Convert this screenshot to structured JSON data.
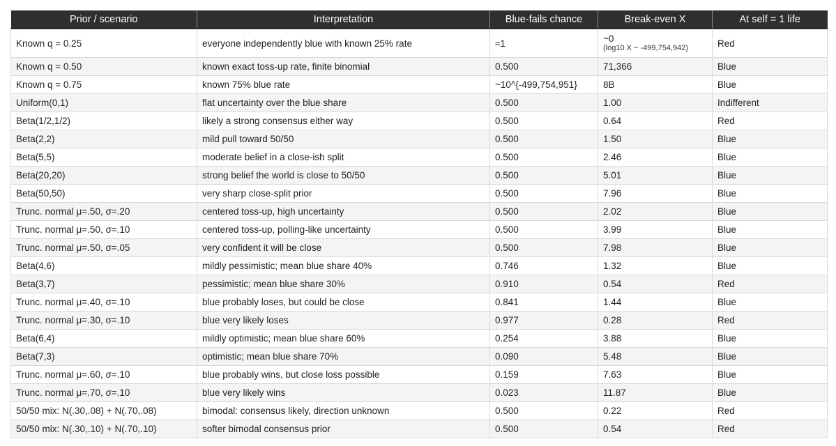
{
  "table": {
    "headers": [
      "Prior / scenario",
      "Interpretation",
      "Blue-fails chance",
      "Break-even X",
      "At self = 1 life"
    ],
    "rows": [
      {
        "prior": "Known q = 0.25",
        "interpretation": "everyone independently blue with known 25% rate",
        "blue_fails": "≈1",
        "break_even": "~0",
        "break_even_note": "(log10 X ~ -499,754,942)",
        "at_self": "Red"
      },
      {
        "prior": "Known q = 0.50",
        "interpretation": "known exact toss-up rate, finite binomial",
        "blue_fails": "0.500",
        "break_even": "71,366",
        "at_self": "Blue"
      },
      {
        "prior": "Known q = 0.75",
        "interpretation": "known 75% blue rate",
        "blue_fails": "~10^{-499,754,951}",
        "break_even": "8B",
        "at_self": "Blue"
      },
      {
        "prior": "Uniform(0,1)",
        "interpretation": "flat uncertainty over the blue share",
        "blue_fails": "0.500",
        "break_even": "1.00",
        "at_self": "Indifferent"
      },
      {
        "prior": "Beta(1/2,1/2)",
        "interpretation": "likely a strong consensus either way",
        "blue_fails": "0.500",
        "break_even": "0.64",
        "at_self": "Red"
      },
      {
        "prior": "Beta(2,2)",
        "interpretation": "mild pull toward 50/50",
        "blue_fails": "0.500",
        "break_even": "1.50",
        "at_self": "Blue"
      },
      {
        "prior": "Beta(5,5)",
        "interpretation": "moderate belief in a close-ish split",
        "blue_fails": "0.500",
        "break_even": "2.46",
        "at_self": "Blue"
      },
      {
        "prior": "Beta(20,20)",
        "interpretation": "strong belief the world is close to 50/50",
        "blue_fails": "0.500",
        "break_even": "5.01",
        "at_self": "Blue"
      },
      {
        "prior": "Beta(50,50)",
        "interpretation": "very sharp close-split prior",
        "blue_fails": "0.500",
        "break_even": "7.96",
        "at_self": "Blue"
      },
      {
        "prior": "Trunc. normal μ=.50, σ=.20",
        "interpretation": "centered toss-up, high uncertainty",
        "blue_fails": "0.500",
        "break_even": "2.02",
        "at_self": "Blue"
      },
      {
        "prior": "Trunc. normal μ=.50, σ=.10",
        "interpretation": "centered toss-up, polling-like uncertainty",
        "blue_fails": "0.500",
        "break_even": "3.99",
        "at_self": "Blue"
      },
      {
        "prior": "Trunc. normal μ=.50, σ=.05",
        "interpretation": "very confident it will be close",
        "blue_fails": "0.500",
        "break_even": "7.98",
        "at_self": "Blue"
      },
      {
        "prior": "Beta(4,6)",
        "interpretation": "mildly pessimistic; mean blue share 40%",
        "blue_fails": "0.746",
        "break_even": "1.32",
        "at_self": "Blue"
      },
      {
        "prior": "Beta(3,7)",
        "interpretation": "pessimistic; mean blue share 30%",
        "blue_fails": "0.910",
        "break_even": "0.54",
        "at_self": "Red"
      },
      {
        "prior": "Trunc. normal μ=.40, σ=.10",
        "interpretation": "blue probably loses, but could be close",
        "blue_fails": "0.841",
        "break_even": "1.44",
        "at_self": "Blue"
      },
      {
        "prior": "Trunc. normal μ=.30, σ=.10",
        "interpretation": "blue very likely loses",
        "blue_fails": "0.977",
        "break_even": "0.28",
        "at_self": "Red"
      },
      {
        "prior": "Beta(6,4)",
        "interpretation": "mildly optimistic; mean blue share 60%",
        "blue_fails": "0.254",
        "break_even": "3.88",
        "at_self": "Blue"
      },
      {
        "prior": "Beta(7,3)",
        "interpretation": "optimistic; mean blue share 70%",
        "blue_fails": "0.090",
        "break_even": "5.48",
        "at_self": "Blue"
      },
      {
        "prior": "Trunc. normal μ=.60, σ=.10",
        "interpretation": "blue probably wins, but close loss possible",
        "blue_fails": "0.159",
        "break_even": "7.63",
        "at_self": "Blue"
      },
      {
        "prior": "Trunc. normal μ=.70, σ=.10",
        "interpretation": "blue very likely wins",
        "blue_fails": "0.023",
        "break_even": "11.87",
        "at_self": "Blue"
      },
      {
        "prior": "50/50 mix: N(.30,.08) + N(.70,.08)",
        "interpretation": "bimodal: consensus likely, direction unknown",
        "blue_fails": "0.500",
        "break_even": "0.22",
        "at_self": "Red"
      },
      {
        "prior": "50/50 mix: N(.30,.10) + N(.70,.10)",
        "interpretation": "softer bimodal consensus prior",
        "blue_fails": "0.500",
        "break_even": "0.54",
        "at_self": "Red"
      }
    ]
  }
}
